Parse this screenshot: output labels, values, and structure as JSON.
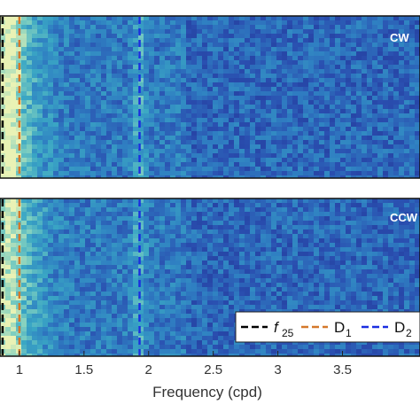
{
  "chart_data": [
    {
      "type": "heatmap",
      "panel_label": "CW",
      "xlabel": "Frequency (cpd)",
      "xlim": [
        0.85,
        4.1
      ],
      "xticks": [
        1,
        1.5,
        2,
        2.5,
        3,
        3.5
      ],
      "xtick_labels": [
        "1",
        "1.5",
        "2",
        "2.5",
        "3",
        "3.5"
      ],
      "colormap": [
        "#1f2f8f",
        "#2a4fb0",
        "#2f7fc2",
        "#3aa6c4",
        "#7fcfc0",
        "#e9f2b5"
      ],
      "vlines": [
        {
          "name": "f25",
          "x": 0.87,
          "color": "#000000",
          "style": "dashed"
        },
        {
          "name": "D1",
          "x": 1.0,
          "color": "#d4782a",
          "style": "dashed"
        },
        {
          "name": "D2",
          "x": 1.93,
          "color": "#1a2ee0",
          "style": "dashed"
        }
      ]
    },
    {
      "type": "heatmap",
      "panel_label": "CCW",
      "xlabel": "Frequency (cpd)",
      "xlim": [
        0.85,
        4.1
      ],
      "xticks": [
        1,
        1.5,
        2,
        2.5,
        3,
        3.5
      ],
      "xtick_labels": [
        "1",
        "1.5",
        "2",
        "2.5",
        "3",
        "3.5"
      ],
      "colormap": [
        "#1f2f8f",
        "#2a4fb0",
        "#2f7fc2",
        "#3aa6c4",
        "#7fcfc0",
        "#e9f2b5"
      ],
      "vlines": [
        {
          "name": "f25",
          "x": 0.87,
          "color": "#000000",
          "style": "dashed"
        },
        {
          "name": "D1",
          "x": 1.0,
          "color": "#d4782a",
          "style": "dashed"
        },
        {
          "name": "D2",
          "x": 1.93,
          "color": "#1a2ee0",
          "style": "dashed"
        }
      ]
    }
  ],
  "legend": {
    "placement": "bottom-right of lower panel",
    "entries": [
      {
        "label_main": "f",
        "label_sub": "25",
        "color": "#000000"
      },
      {
        "label_main": "D",
        "label_sub": "1",
        "color": "#d4782a"
      },
      {
        "label_main": "D",
        "label_sub": "2",
        "color": "#1a2ee0"
      }
    ]
  }
}
